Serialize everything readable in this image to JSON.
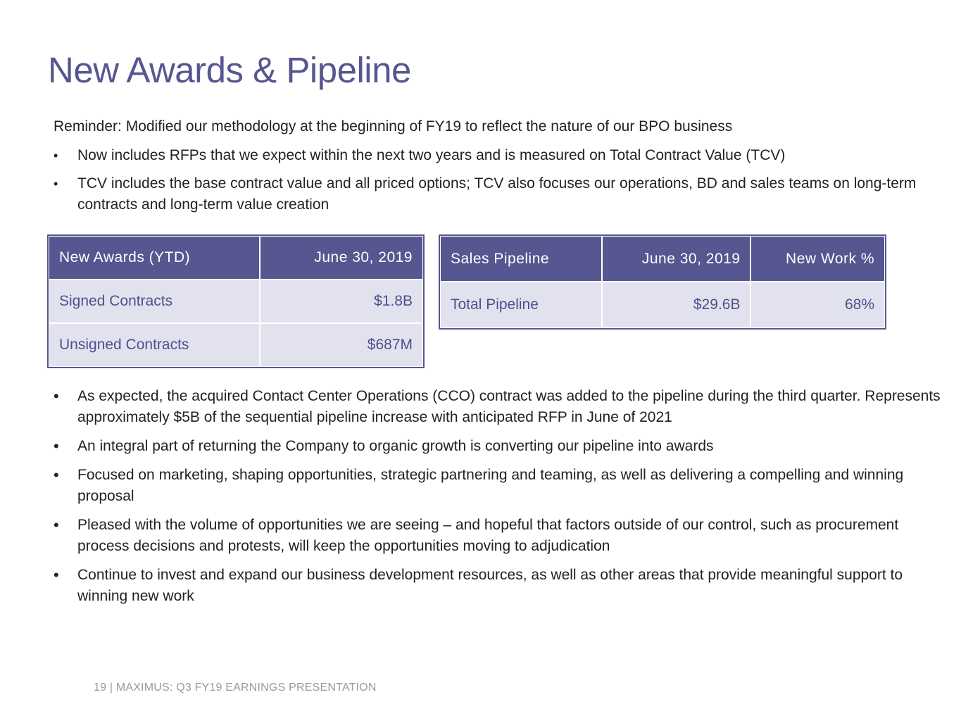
{
  "title": "New Awards & Pipeline",
  "intro": {
    "reminder": "Reminder: Modified our methodology at the beginning of FY19 to reflect the nature of our BPO business",
    "bullet_glyph": "•",
    "bullets": [
      "Now includes RFPs that we expect within the next two years and is measured on Total Contract Value (TCV)",
      "TCV includes the base contract value and all priced options; TCV also focuses our operations, BD and sales teams on long-term contracts and long-term value creation"
    ]
  },
  "awards_table": {
    "headers": [
      "New Awards (YTD)",
      "June 30, 2019"
    ],
    "rows": [
      [
        "Signed Contracts",
        "$1.8B"
      ],
      [
        "Unsigned Contracts",
        "$687M"
      ]
    ]
  },
  "pipeline_table": {
    "headers": [
      "Sales Pipeline",
      "June 30, 2019",
      "New Work %"
    ],
    "rows": [
      [
        "Total Pipeline",
        "$29.6B",
        "68%"
      ]
    ]
  },
  "bullets": [
    "As expected, the acquired Contact Center Operations (CCO) contract was added to the pipeline during the third quarter. Represents approximately $5B of the sequential pipeline increase with anticipated RFP in June of 2021",
    "An integral part of returning the Company to organic growth is converting our pipeline into awards",
    "Focused on marketing, shaping opportunities, strategic partnering and teaming, as well as delivering a compelling and winning proposal",
    "Pleased with the volume of opportunities we are seeing – and hopeful that factors outside of our control, such as procurement process decisions and protests, will keep the opportunities moving to adjudication",
    "Continue to invest and expand our business development resources, as well as other areas that provide meaningful support to winning new work"
  ],
  "footer": "19 | MAXIMUS: Q3 FY19 EARNINGS PRESENTATION",
  "colors": {
    "accent": "#565690",
    "table_fill": "#e2e2ef",
    "table_text": "#4f4f8c"
  }
}
